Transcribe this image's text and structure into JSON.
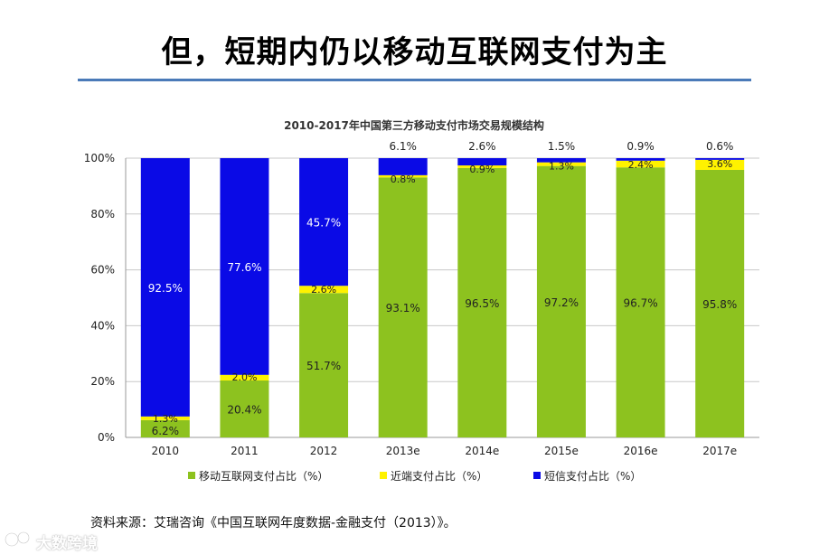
{
  "slide": {
    "title": "但，短期内仍以移动互联网支付为主",
    "source_note": "资料来源：艾瑞咨询《中国互联网年度数据-金融支付（2013）》。",
    "watermark": "大数跨境"
  },
  "colors": {
    "mobile_internet": "#8DC21F",
    "near_field": "#FFF200",
    "sms": "#0A0AE6",
    "title_rule": "#4a7ab8",
    "grid": "#c8c8c8"
  },
  "chart_data": {
    "type": "bar",
    "stacked": true,
    "title": "2010-2017年中国第三方移动支付市场交易规模结构",
    "categories": [
      "2010",
      "2011",
      "2012",
      "2013e",
      "2014e",
      "2015e",
      "2016e",
      "2017e"
    ],
    "series": [
      {
        "name": "移动互联网支付占比（%）",
        "values": [
          6.2,
          20.4,
          51.7,
          93.1,
          96.5,
          97.2,
          96.7,
          95.8
        ],
        "labels": [
          "6.2%",
          "20.4%",
          "51.7%",
          "93.1%",
          "96.5%",
          "97.2%",
          "96.7%",
          "95.8%"
        ]
      },
      {
        "name": "近端支付占比（%）",
        "values": [
          1.3,
          2.0,
          2.6,
          0.8,
          0.9,
          1.3,
          2.4,
          3.6
        ],
        "labels": [
          "1.3%",
          "2.0%",
          "2.6%",
          "0.8%",
          "0.9%",
          "1.3%",
          "2.4%",
          "3.6%"
        ]
      },
      {
        "name": "短信支付占比（%）",
        "values": [
          92.5,
          77.6,
          45.7,
          6.1,
          2.6,
          1.5,
          0.9,
          0.6
        ],
        "labels": [
          "92.5%",
          "77.6%",
          "45.7%",
          "6.1%",
          "2.6%",
          "1.5%",
          "0.9%",
          "0.6%"
        ]
      }
    ],
    "ylim": [
      0,
      100
    ],
    "yticks": [
      "0%",
      "20%",
      "40%",
      "60%",
      "80%",
      "100%"
    ],
    "grid": true,
    "legend_position": "bottom"
  }
}
